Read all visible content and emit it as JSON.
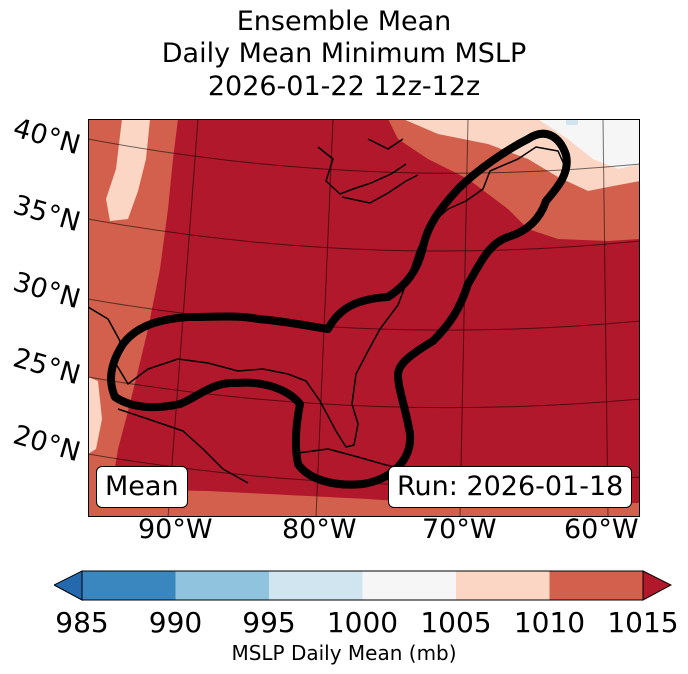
{
  "title": [
    "Ensemble Mean",
    "Daily Mean Minimum MSLP",
    "2026-01-22 12z-12z"
  ],
  "map": {
    "lat_labels": [
      "40°N",
      "35°N",
      "30°N",
      "25°N",
      "20°N"
    ],
    "lon_labels": [
      "90°W",
      "80°W",
      "70°W",
      "60°W"
    ],
    "mean_box": "Mean",
    "run_box": "Run: 2026-01-18"
  },
  "colorbar": {
    "ticks": [
      "985",
      "990",
      "995",
      "1000",
      "1005",
      "1010",
      "1015"
    ],
    "label": "MSLP Daily Mean (mb)",
    "bins": [
      {
        "range": "985-990",
        "color": "#3a87bf"
      },
      {
        "range": "990-995",
        "color": "#90c4de"
      },
      {
        "range": "995-1000",
        "color": "#d0e5f0"
      },
      {
        "range": "1000-1005",
        "color": "#f6f6f6"
      },
      {
        "range": "1005-1010",
        "color": "#fcd6c4"
      },
      {
        "range": "1010-1015",
        "color": "#d2604c"
      }
    ],
    "under_color": "#2469ae",
    "over_color": "#b2182b"
  }
}
